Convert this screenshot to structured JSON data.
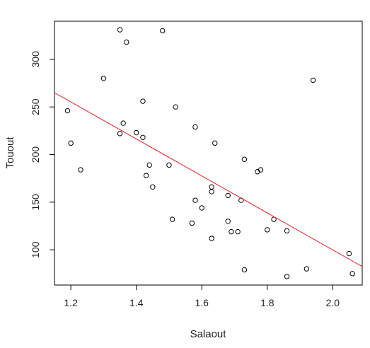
{
  "chart_data": {
    "type": "scatter",
    "xlabel": "Salaout",
    "ylabel": "Touout",
    "xlim": [
      1.15,
      2.09
    ],
    "ylim": [
      63,
      340
    ],
    "xticks": [
      1.2,
      1.4,
      1.6,
      1.8,
      2.0
    ],
    "xtick_labels": [
      "1.2",
      "1.4",
      "1.6",
      "1.8",
      "2.0"
    ],
    "yticks": [
      100,
      150,
      200,
      250,
      300
    ],
    "ytick_labels": [
      "100",
      "150",
      "200",
      "250",
      "300"
    ],
    "grid": false,
    "point_style": "open-circle",
    "points": [
      {
        "x": 1.19,
        "y": 246
      },
      {
        "x": 1.2,
        "y": 212
      },
      {
        "x": 1.23,
        "y": 184
      },
      {
        "x": 1.3,
        "y": 280
      },
      {
        "x": 1.35,
        "y": 331
      },
      {
        "x": 1.37,
        "y": 318
      },
      {
        "x": 1.35,
        "y": 222
      },
      {
        "x": 1.36,
        "y": 233
      },
      {
        "x": 1.4,
        "y": 223
      },
      {
        "x": 1.42,
        "y": 218
      },
      {
        "x": 1.42,
        "y": 256
      },
      {
        "x": 1.43,
        "y": 178
      },
      {
        "x": 1.44,
        "y": 189
      },
      {
        "x": 1.45,
        "y": 166
      },
      {
        "x": 1.48,
        "y": 330
      },
      {
        "x": 1.5,
        "y": 189
      },
      {
        "x": 1.51,
        "y": 132
      },
      {
        "x": 1.52,
        "y": 250
      },
      {
        "x": 1.57,
        "y": 128
      },
      {
        "x": 1.58,
        "y": 229
      },
      {
        "x": 1.58,
        "y": 152
      },
      {
        "x": 1.6,
        "y": 144
      },
      {
        "x": 1.63,
        "y": 166
      },
      {
        "x": 1.63,
        "y": 161
      },
      {
        "x": 1.64,
        "y": 212
      },
      {
        "x": 1.63,
        "y": 112
      },
      {
        "x": 1.68,
        "y": 157
      },
      {
        "x": 1.68,
        "y": 130
      },
      {
        "x": 1.69,
        "y": 119
      },
      {
        "x": 1.71,
        "y": 119
      },
      {
        "x": 1.72,
        "y": 152
      },
      {
        "x": 1.73,
        "y": 195
      },
      {
        "x": 1.73,
        "y": 79
      },
      {
        "x": 1.77,
        "y": 182
      },
      {
        "x": 1.78,
        "y": 184
      },
      {
        "x": 1.8,
        "y": 121
      },
      {
        "x": 1.82,
        "y": 132
      },
      {
        "x": 1.86,
        "y": 120
      },
      {
        "x": 1.86,
        "y": 72
      },
      {
        "x": 1.92,
        "y": 80
      },
      {
        "x": 1.94,
        "y": 278
      },
      {
        "x": 2.05,
        "y": 96
      },
      {
        "x": 2.06,
        "y": 75
      }
    ],
    "fit_line": {
      "slope": -194.2,
      "intercept": 488.3
    },
    "colors": {
      "points": "#000000",
      "fit_line": "#e02020",
      "axes": "#000000"
    }
  }
}
